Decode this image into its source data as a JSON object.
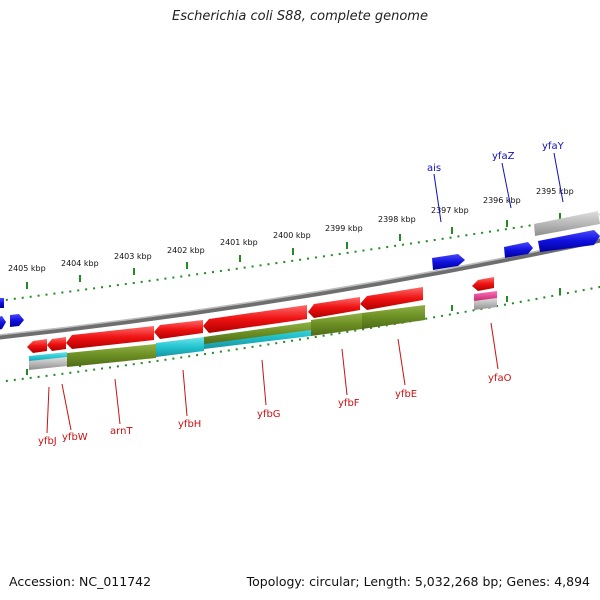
{
  "title": "Escherichia coli S88, complete genome",
  "footer": {
    "accession": "Accession: NC_011742",
    "summary": "Topology: circular; Length: 5,032,268 bp; Genes: 4,894"
  },
  "scale_labels": [
    "2395 kbp",
    "2396 kbp",
    "2397 kbp",
    "2398 kbp",
    "2399 kbp",
    "2400 kbp",
    "2401 kbp",
    "2402 kbp",
    "2403 kbp",
    "2404 kbp",
    "2405 kbp"
  ],
  "gene_labels_forward": [
    "yfaY",
    "yfaZ",
    "ais"
  ],
  "gene_labels_reverse": [
    "yfaO",
    "yfbE",
    "yfbF",
    "yfbG",
    "yfbH",
    "arnT",
    "yfbW",
    "yfbJ"
  ],
  "colors": {
    "forward_gene": "#1010dd",
    "reverse_gene": "#ee1111",
    "cds_olive": "#6b8e23",
    "cds_cyan": "#22c4d0",
    "tick": "#228b22",
    "backbone": "#888888",
    "gray_feature": "#b8b8b8",
    "pink_feature": "#e0308a",
    "forward_label": "#1010bb",
    "reverse_label": "#cc1111"
  }
}
